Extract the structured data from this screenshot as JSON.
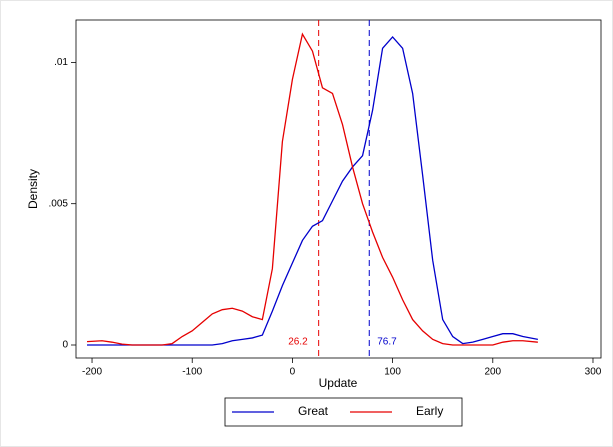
{
  "chart_data": {
    "type": "line",
    "x_label": "Update",
    "y_label": "Density",
    "x": [
      -205,
      -190,
      -180,
      -170,
      -160,
      -150,
      -140,
      -130,
      -120,
      -110,
      -100,
      -90,
      -80,
      -70,
      -60,
      -50,
      -40,
      -30,
      -20,
      -10,
      0,
      10,
      20,
      30,
      40,
      50,
      60,
      70,
      80,
      90,
      100,
      110,
      120,
      130,
      140,
      150,
      160,
      170,
      180,
      190,
      200,
      210,
      220,
      230,
      245
    ],
    "series": [
      {
        "name": "Great",
        "color": "#0000cc",
        "values": [
          0,
          0,
          0,
          0,
          0,
          0,
          0,
          0,
          0,
          0,
          0,
          0,
          0,
          5e-05,
          0.00015,
          0.0002,
          0.00025,
          0.00035,
          0.0012,
          0.0021,
          0.0029,
          0.0037,
          0.0042,
          0.0044,
          0.0051,
          0.0058,
          0.0063,
          0.0067,
          0.0083,
          0.0105,
          0.0109,
          0.0105,
          0.0089,
          0.006,
          0.003,
          0.0009,
          0.0003,
          5e-05,
          0.0001,
          0.0002,
          0.0003,
          0.0004,
          0.0004,
          0.0003,
          0.0002
        ]
      },
      {
        "name": "Early",
        "color": "#e60000",
        "values": [
          0.00012,
          0.00015,
          0.0001,
          3e-05,
          0,
          0,
          0,
          0,
          5e-05,
          0.0003,
          0.0005,
          0.0008,
          0.0011,
          0.00125,
          0.0013,
          0.0012,
          0.001,
          0.0009,
          0.0027,
          0.0072,
          0.0094,
          0.011,
          0.0104,
          0.0091,
          0.0089,
          0.0078,
          0.0063,
          0.005,
          0.004,
          0.0031,
          0.0024,
          0.0016,
          0.0009,
          0.0005,
          0.0002,
          5e-05,
          0,
          0,
          0,
          0,
          0,
          0.0001,
          0.00015,
          0.00015,
          0.0001
        ]
      }
    ],
    "reference_lines": [
      {
        "value": 26.2,
        "color": "#e60000"
      },
      {
        "value": 76.7,
        "color": "#0000cc"
      }
    ],
    "xlim": [
      -216,
      308
    ],
    "ylim": [
      -0.00046,
      0.0115
    ],
    "xticks": [
      -200,
      -100,
      0,
      100,
      200,
      300
    ],
    "yticks": [
      {
        "value": 0,
        "label": "0"
      },
      {
        "value": 0.005,
        "label": ".005"
      },
      {
        "value": 0.01,
        "label": ".01"
      }
    ],
    "legend": "bottom"
  }
}
